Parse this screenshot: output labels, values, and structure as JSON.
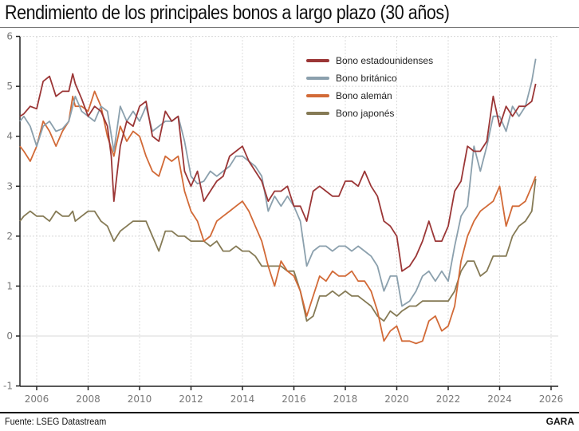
{
  "title": "Rendimiento de los principales bonos a largo plazo (30 años)",
  "source": "Fuente: LSEG Datastream",
  "brand": "GARA",
  "chart_data": {
    "type": "line",
    "title": "Rendimiento de los principales bonos a largo plazo (30 años)",
    "xlabel": "",
    "ylabel": "",
    "xlim": [
      2005.35,
      2026.3
    ],
    "ylim": [
      -1,
      6
    ],
    "yticks": [
      6,
      5,
      4,
      3,
      2,
      1,
      0,
      -1
    ],
    "xticks": [
      2006,
      2008,
      2010,
      2012,
      2014,
      2016,
      2018,
      2020,
      2022,
      2024,
      2026
    ],
    "grid": true,
    "legend_position": "top-center",
    "series": [
      {
        "name": "Bono estadounidenses",
        "color": "#9b3636",
        "x": [
          2005.35,
          2005.5,
          2005.75,
          2006.0,
          2006.25,
          2006.5,
          2006.75,
          2007.0,
          2007.25,
          2007.4,
          2007.5,
          2007.75,
          2008.0,
          2008.25,
          2008.5,
          2008.75,
          2008.9,
          2009.0,
          2009.25,
          2009.5,
          2009.75,
          2010.0,
          2010.25,
          2010.5,
          2010.75,
          2011.0,
          2011.25,
          2011.5,
          2011.75,
          2012.0,
          2012.25,
          2012.5,
          2012.75,
          2013.0,
          2013.25,
          2013.5,
          2013.75,
          2014.0,
          2014.25,
          2014.5,
          2014.75,
          2015.0,
          2015.25,
          2015.5,
          2015.75,
          2016.0,
          2016.25,
          2016.5,
          2016.75,
          2017.0,
          2017.25,
          2017.5,
          2017.75,
          2018.0,
          2018.25,
          2018.5,
          2018.75,
          2019.0,
          2019.25,
          2019.5,
          2019.75,
          2020.0,
          2020.2,
          2020.5,
          2020.75,
          2021.0,
          2021.25,
          2021.5,
          2021.75,
          2022.0,
          2022.25,
          2022.5,
          2022.75,
          2023.0,
          2023.25,
          2023.5,
          2023.75,
          2024.0,
          2024.25,
          2024.5,
          2024.75,
          2025.0,
          2025.25,
          2025.4
        ],
        "values": [
          4.4,
          4.45,
          4.6,
          4.55,
          5.1,
          5.2,
          4.8,
          4.9,
          4.9,
          5.25,
          5.05,
          4.75,
          4.4,
          4.6,
          4.5,
          4.2,
          3.6,
          2.7,
          3.8,
          4.3,
          4.2,
          4.6,
          4.7,
          4.0,
          3.9,
          4.5,
          4.3,
          4.4,
          3.3,
          3.0,
          3.3,
          2.7,
          2.9,
          3.1,
          3.2,
          3.6,
          3.7,
          3.8,
          3.5,
          3.3,
          3.1,
          2.7,
          2.9,
          2.9,
          3.0,
          2.6,
          2.6,
          2.3,
          2.9,
          3.0,
          2.9,
          2.8,
          2.8,
          3.1,
          3.1,
          3.0,
          3.3,
          3.0,
          2.8,
          2.3,
          2.2,
          2.0,
          1.3,
          1.4,
          1.6,
          1.9,
          2.3,
          1.9,
          1.9,
          2.2,
          2.9,
          3.1,
          3.8,
          3.7,
          3.7,
          3.9,
          4.8,
          4.2,
          4.6,
          4.4,
          4.6,
          4.6,
          4.7,
          5.05
        ]
      },
      {
        "name": "Bono británico",
        "color": "#8ba0ad",
        "x": [
          2005.35,
          2005.5,
          2005.75,
          2006.0,
          2006.25,
          2006.5,
          2006.75,
          2007.0,
          2007.25,
          2007.4,
          2007.5,
          2007.75,
          2008.0,
          2008.25,
          2008.5,
          2008.75,
          2009.0,
          2009.25,
          2009.5,
          2009.75,
          2010.0,
          2010.25,
          2010.5,
          2010.75,
          2011.0,
          2011.25,
          2011.5,
          2011.75,
          2012.0,
          2012.25,
          2012.5,
          2012.75,
          2013.0,
          2013.25,
          2013.5,
          2013.75,
          2014.0,
          2014.25,
          2014.5,
          2014.75,
          2015.0,
          2015.25,
          2015.5,
          2015.75,
          2016.0,
          2016.25,
          2016.5,
          2016.75,
          2017.0,
          2017.25,
          2017.5,
          2017.75,
          2018.0,
          2018.25,
          2018.5,
          2018.75,
          2019.0,
          2019.25,
          2019.5,
          2019.75,
          2020.0,
          2020.2,
          2020.5,
          2020.75,
          2021.0,
          2021.25,
          2021.5,
          2021.75,
          2022.0,
          2022.25,
          2022.5,
          2022.75,
          2023.0,
          2023.25,
          2023.5,
          2023.75,
          2024.0,
          2024.25,
          2024.5,
          2024.75,
          2025.0,
          2025.25,
          2025.4
        ],
        "values": [
          4.3,
          4.4,
          4.2,
          3.8,
          4.2,
          4.3,
          4.1,
          4.15,
          4.3,
          4.6,
          4.8,
          4.5,
          4.4,
          4.3,
          4.6,
          4.5,
          3.7,
          4.6,
          4.3,
          4.5,
          4.3,
          4.6,
          4.1,
          4.2,
          4.3,
          4.3,
          4.4,
          3.9,
          3.2,
          3.05,
          3.1,
          3.3,
          3.2,
          3.3,
          3.4,
          3.6,
          3.6,
          3.5,
          3.4,
          3.2,
          2.5,
          2.8,
          2.6,
          2.8,
          2.6,
          2.3,
          1.4,
          1.7,
          1.8,
          1.8,
          1.7,
          1.8,
          1.8,
          1.7,
          1.8,
          1.7,
          1.6,
          1.4,
          0.9,
          1.2,
          1.2,
          0.6,
          0.7,
          0.9,
          1.2,
          1.3,
          1.1,
          1.3,
          1.1,
          1.8,
          2.4,
          2.6,
          3.8,
          3.3,
          3.8,
          4.4,
          4.4,
          4.1,
          4.6,
          4.4,
          4.6,
          5.1,
          5.55
        ]
      },
      {
        "name": "Bono alemán",
        "color": "#d26a37",
        "x": [
          2005.35,
          2005.5,
          2005.75,
          2006.0,
          2006.25,
          2006.5,
          2006.75,
          2007.0,
          2007.25,
          2007.4,
          2007.5,
          2007.75,
          2008.0,
          2008.25,
          2008.5,
          2008.75,
          2009.0,
          2009.25,
          2009.5,
          2009.75,
          2010.0,
          2010.25,
          2010.5,
          2010.75,
          2011.0,
          2011.25,
          2011.5,
          2011.75,
          2012.0,
          2012.25,
          2012.5,
          2012.75,
          2013.0,
          2013.25,
          2013.5,
          2013.75,
          2014.0,
          2014.25,
          2014.5,
          2014.75,
          2015.0,
          2015.25,
          2015.5,
          2015.75,
          2016.0,
          2016.25,
          2016.5,
          2016.75,
          2017.0,
          2017.25,
          2017.5,
          2017.75,
          2018.0,
          2018.25,
          2018.5,
          2018.75,
          2019.0,
          2019.25,
          2019.5,
          2019.75,
          2020.0,
          2020.2,
          2020.5,
          2020.75,
          2021.0,
          2021.25,
          2021.5,
          2021.75,
          2022.0,
          2022.25,
          2022.5,
          2022.75,
          2023.0,
          2023.25,
          2023.5,
          2023.75,
          2024.0,
          2024.25,
          2024.5,
          2024.75,
          2025.0,
          2025.25,
          2025.4
        ],
        "values": [
          3.8,
          3.7,
          3.5,
          3.8,
          4.3,
          4.1,
          3.8,
          4.1,
          4.3,
          4.8,
          4.6,
          4.6,
          4.5,
          4.9,
          4.6,
          4.0,
          3.6,
          4.2,
          3.9,
          4.1,
          4.0,
          3.6,
          3.3,
          3.2,
          3.6,
          3.5,
          3.6,
          2.9,
          2.5,
          2.3,
          1.9,
          2.0,
          2.3,
          2.4,
          2.5,
          2.6,
          2.7,
          2.5,
          2.2,
          1.9,
          1.4,
          1.0,
          1.5,
          1.3,
          1.2,
          0.9,
          0.4,
          0.8,
          1.2,
          1.1,
          1.3,
          1.2,
          1.2,
          1.3,
          1.1,
          1.1,
          0.9,
          0.5,
          -0.1,
          0.1,
          0.2,
          -0.1,
          -0.1,
          -0.15,
          -0.1,
          0.3,
          0.4,
          0.1,
          0.2,
          0.6,
          1.5,
          2.0,
          2.3,
          2.5,
          2.6,
          2.7,
          3.0,
          2.2,
          2.6,
          2.6,
          2.7,
          3.0,
          3.2
        ]
      },
      {
        "name": "Bono japonés",
        "color": "#857a55",
        "x": [
          2005.35,
          2005.5,
          2005.75,
          2006.0,
          2006.25,
          2006.5,
          2006.75,
          2007.0,
          2007.25,
          2007.4,
          2007.5,
          2007.75,
          2008.0,
          2008.25,
          2008.5,
          2008.75,
          2009.0,
          2009.25,
          2009.5,
          2009.75,
          2010.0,
          2010.25,
          2010.5,
          2010.75,
          2011.0,
          2011.25,
          2011.5,
          2011.75,
          2012.0,
          2012.25,
          2012.5,
          2012.75,
          2013.0,
          2013.25,
          2013.5,
          2013.75,
          2014.0,
          2014.25,
          2014.5,
          2014.75,
          2015.0,
          2015.25,
          2015.5,
          2015.75,
          2016.0,
          2016.25,
          2016.5,
          2016.75,
          2017.0,
          2017.25,
          2017.5,
          2017.75,
          2018.0,
          2018.25,
          2018.5,
          2018.75,
          2019.0,
          2019.25,
          2019.5,
          2019.75,
          2020.0,
          2020.2,
          2020.5,
          2020.75,
          2021.0,
          2021.25,
          2021.5,
          2021.75,
          2022.0,
          2022.25,
          2022.5,
          2022.75,
          2023.0,
          2023.25,
          2023.5,
          2023.75,
          2024.0,
          2024.25,
          2024.5,
          2024.75,
          2025.0,
          2025.25,
          2025.4
        ],
        "values": [
          2.3,
          2.4,
          2.5,
          2.4,
          2.4,
          2.3,
          2.5,
          2.4,
          2.4,
          2.5,
          2.3,
          2.4,
          2.5,
          2.5,
          2.3,
          2.2,
          1.9,
          2.1,
          2.2,
          2.3,
          2.3,
          2.3,
          2.0,
          1.7,
          2.1,
          2.1,
          2.0,
          2.0,
          1.9,
          1.9,
          1.9,
          1.8,
          1.9,
          1.7,
          1.7,
          1.8,
          1.7,
          1.7,
          1.6,
          1.4,
          1.4,
          1.4,
          1.4,
          1.3,
          1.3,
          0.9,
          0.3,
          0.4,
          0.8,
          0.8,
          0.9,
          0.8,
          0.9,
          0.8,
          0.8,
          0.7,
          0.6,
          0.4,
          0.3,
          0.5,
          0.4,
          0.5,
          0.6,
          0.6,
          0.7,
          0.7,
          0.7,
          0.7,
          0.7,
          0.9,
          1.3,
          1.5,
          1.5,
          1.2,
          1.3,
          1.6,
          1.6,
          1.6,
          2.0,
          2.2,
          2.3,
          2.5,
          3.15
        ]
      }
    ]
  }
}
